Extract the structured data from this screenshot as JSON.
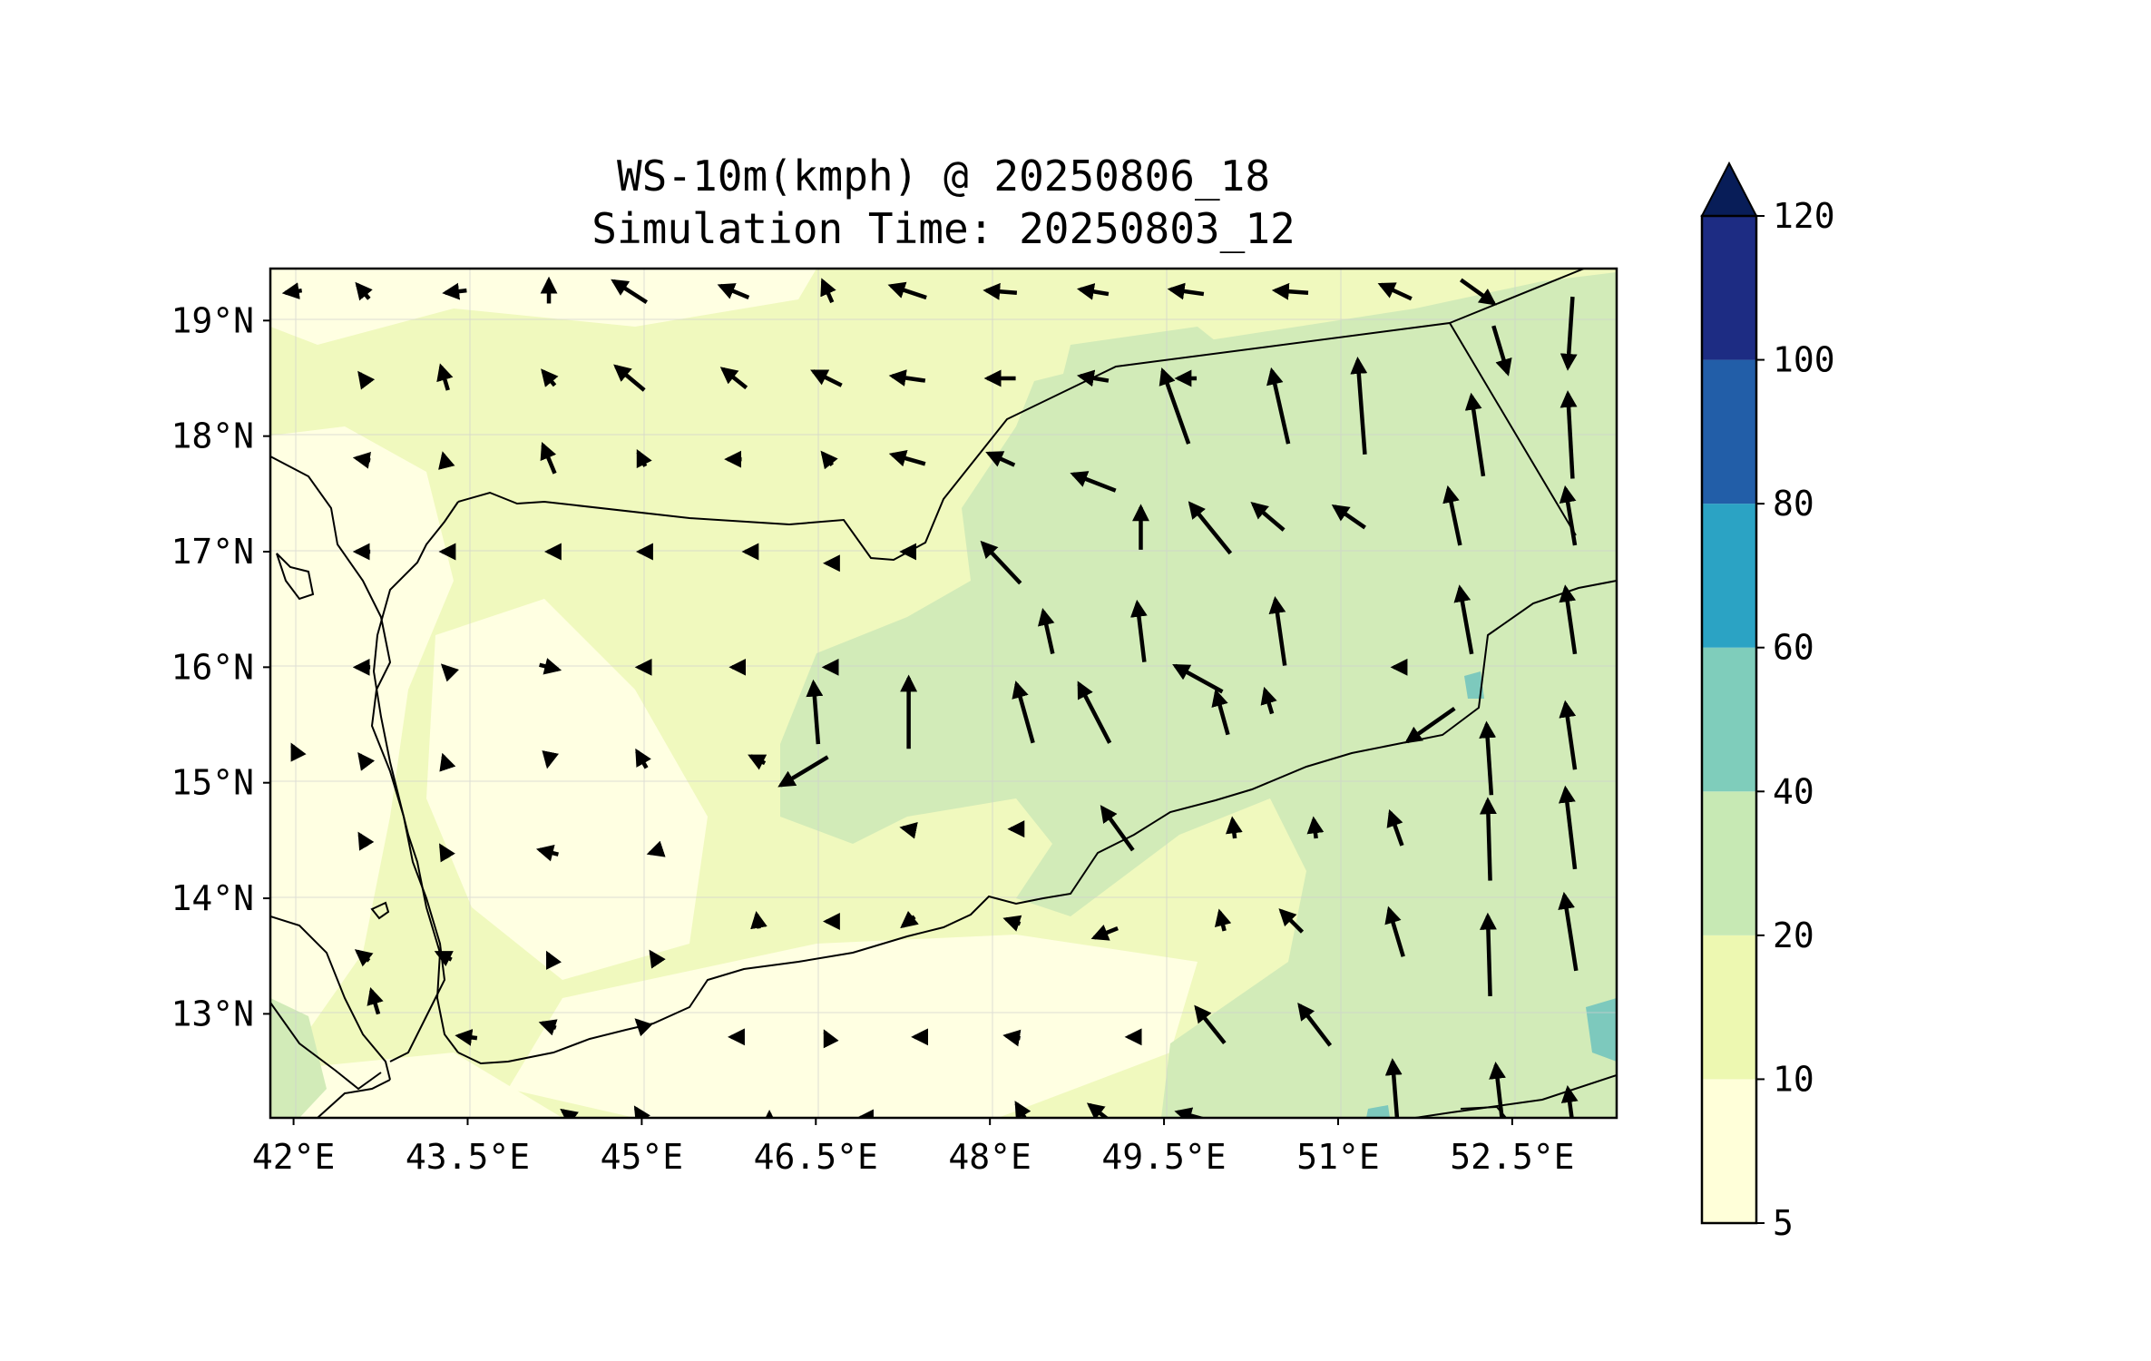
{
  "title": {
    "line1": "WS-10m(kmph) @ 20250806_18",
    "line2": "Simulation Time: 20250803_12"
  },
  "map": {
    "lon_range": [
      41.8,
      53.4
    ],
    "lat_range": [
      12.1,
      19.45
    ],
    "lon_ticks": [
      {
        "value": 42.0,
        "label": "42°E"
      },
      {
        "value": 43.5,
        "label": "43.5°E"
      },
      {
        "value": 45.0,
        "label": "45°E"
      },
      {
        "value": 46.5,
        "label": "46.5°E"
      },
      {
        "value": 48.0,
        "label": "48°E"
      },
      {
        "value": 49.5,
        "label": "49.5°E"
      },
      {
        "value": 51.0,
        "label": "51°E"
      },
      {
        "value": 52.5,
        "label": "52.5°E"
      }
    ],
    "lat_ticks": [
      {
        "value": 19,
        "label": "19°N"
      },
      {
        "value": 18,
        "label": "18°N"
      },
      {
        "value": 17,
        "label": "17°N"
      },
      {
        "value": 16,
        "label": "16°N"
      },
      {
        "value": 15,
        "label": "15°N"
      },
      {
        "value": 14,
        "label": "14°N"
      },
      {
        "value": 13,
        "label": "13°N"
      }
    ],
    "grid": true,
    "colors": {
      "land_background": "#f0f9be",
      "calm": "#ffffe2",
      "band_10_20": "#f0f9be",
      "band_20_40": "#d2ebb8",
      "band_40_60": "#7dc9bd",
      "arrow": "#000000",
      "coastline": "#000000"
    }
  },
  "colorbar": {
    "levels": [
      5,
      10,
      20,
      40,
      60,
      80,
      100,
      120
    ],
    "labels": [
      "5",
      "10",
      "20",
      "40",
      "60",
      "80",
      "100",
      "120"
    ],
    "colors": [
      "#ffffd9",
      "#edf8b1",
      "#c7e9b4",
      "#7fcdbb",
      "#2ba3c4",
      "#225ea8",
      "#1d2c83",
      "#081d58"
    ],
    "extend": "max"
  },
  "chart_data": {
    "type": "heatmap",
    "variable": "WS-10m(kmph)",
    "units": "kmph",
    "valid_time": "20250806_18",
    "simulation_time": "20250803_12",
    "vector_field": [
      [
        42.0,
        19.25,
        -7,
        -1
      ],
      [
        42.6,
        19.25,
        -5,
        6
      ],
      [
        43.4,
        19.25,
        -9,
        -1
      ],
      [
        44.2,
        19.25,
        0,
        10
      ],
      [
        44.9,
        19.25,
        -14,
        9
      ],
      [
        45.8,
        19.25,
        -12,
        5
      ],
      [
        46.6,
        19.25,
        -4,
        9
      ],
      [
        47.3,
        19.25,
        -15,
        5
      ],
      [
        48.1,
        19.25,
        -13,
        1
      ],
      [
        48.9,
        19.25,
        -12,
        2
      ],
      [
        49.7,
        19.25,
        -14,
        2
      ],
      [
        50.6,
        19.25,
        -14,
        1
      ],
      [
        51.5,
        19.25,
        -13,
        6
      ],
      [
        52.2,
        19.25,
        14,
        -10
      ],
      [
        52.4,
        18.75,
        6,
        -20
      ],
      [
        53.0,
        18.9,
        -2,
        -30
      ],
      [
        42.6,
        18.5,
        -3,
        4
      ],
      [
        43.3,
        18.5,
        -3,
        10
      ],
      [
        44.2,
        18.5,
        -5,
        6
      ],
      [
        44.9,
        18.5,
        -12,
        10
      ],
      [
        45.8,
        18.5,
        -10,
        8
      ],
      [
        46.6,
        18.5,
        -12,
        6
      ],
      [
        47.3,
        18.5,
        -14,
        2
      ],
      [
        48.1,
        18.5,
        -12,
        0
      ],
      [
        48.9,
        18.5,
        -12,
        2
      ],
      [
        49.7,
        18.5,
        -8,
        0
      ],
      [
        49.6,
        18.25,
        -11,
        31
      ],
      [
        50.5,
        18.25,
        -7,
        31
      ],
      [
        51.2,
        18.25,
        -3,
        40
      ],
      [
        52.2,
        18.0,
        -5,
        34
      ],
      [
        53.0,
        18.0,
        -2,
        36
      ],
      [
        42.6,
        17.8,
        -6,
        1
      ],
      [
        43.3,
        17.8,
        -1,
        4
      ],
      [
        44.2,
        17.8,
        -5,
        12
      ],
      [
        45.0,
        17.8,
        -3,
        6
      ],
      [
        45.8,
        17.8,
        -6,
        0
      ],
      [
        46.6,
        17.8,
        -4,
        5
      ],
      [
        47.3,
        17.8,
        -14,
        4
      ],
      [
        48.1,
        17.8,
        -11,
        5
      ],
      [
        48.9,
        17.6,
        -18,
        7
      ],
      [
        49.3,
        17.2,
        0,
        18
      ],
      [
        49.9,
        17.2,
        -17,
        21
      ],
      [
        50.4,
        17.3,
        -13,
        11
      ],
      [
        51.1,
        17.3,
        -13,
        9
      ],
      [
        52.0,
        17.3,
        -5,
        24
      ],
      [
        53.0,
        17.3,
        -4,
        24
      ],
      [
        42.6,
        17.0,
        -6,
        0
      ],
      [
        43.3,
        17.0,
        -2,
        0
      ],
      [
        44.2,
        17.0,
        -1,
        0
      ],
      [
        45.0,
        17.0,
        -2,
        0
      ],
      [
        45.9,
        17.0,
        -1,
        0
      ],
      [
        46.6,
        16.9,
        -1,
        0
      ],
      [
        47.3,
        17.0,
        -5,
        0
      ],
      [
        48.1,
        16.9,
        -16,
        17
      ],
      [
        48.5,
        16.3,
        -4,
        18
      ],
      [
        49.3,
        16.3,
        -3,
        25
      ],
      [
        50.5,
        16.3,
        -4,
        28
      ],
      [
        52.1,
        16.4,
        -5,
        28
      ],
      [
        53.0,
        16.4,
        -4,
        28
      ],
      [
        42.6,
        16.0,
        -6,
        0
      ],
      [
        43.3,
        16.0,
        -1,
        1
      ],
      [
        44.2,
        16.0,
        8,
        -2
      ],
      [
        45.0,
        16.0,
        -3,
        0
      ],
      [
        45.8,
        16.0,
        -2,
        0
      ],
      [
        46.6,
        16.0,
        -2,
        0
      ],
      [
        46.5,
        15.6,
        -2,
        26
      ],
      [
        47.3,
        15.6,
        0,
        30
      ],
      [
        48.3,
        15.6,
        -7,
        25
      ],
      [
        48.9,
        15.6,
        -13,
        25
      ],
      [
        49.8,
        15.9,
        -20,
        11
      ],
      [
        50.0,
        15.6,
        -5,
        18
      ],
      [
        50.4,
        15.7,
        -3,
        10
      ],
      [
        51.5,
        16.0,
        -2,
        0
      ],
      [
        51.8,
        15.5,
        -20,
        -14
      ],
      [
        52.3,
        15.2,
        -2,
        30
      ],
      [
        53.0,
        15.4,
        -4,
        28
      ],
      [
        42.0,
        15.3,
        -1,
        2
      ],
      [
        42.6,
        15.2,
        -3,
        4
      ],
      [
        43.3,
        15.2,
        -1,
        3
      ],
      [
        44.2,
        15.2,
        -1,
        -5
      ],
      [
        45.0,
        15.2,
        -4,
        7
      ],
      [
        46.0,
        15.2,
        -6,
        3
      ],
      [
        46.4,
        15.1,
        -20,
        -12
      ],
      [
        47.3,
        14.6,
        -5,
        1
      ],
      [
        48.2,
        14.6,
        -2,
        0
      ],
      [
        49.1,
        14.6,
        -13,
        18
      ],
      [
        50.1,
        14.6,
        -1,
        8
      ],
      [
        50.8,
        14.6,
        -1,
        8
      ],
      [
        51.5,
        14.6,
        -5,
        14
      ],
      [
        52.3,
        14.5,
        -1,
        34
      ],
      [
        53.0,
        14.6,
        -4,
        34
      ],
      [
        42.6,
        14.5,
        -3,
        5
      ],
      [
        43.3,
        14.4,
        -3,
        5
      ],
      [
        44.2,
        14.4,
        -8,
        2
      ],
      [
        45.1,
        14.4,
        -3,
        -1
      ],
      [
        46.0,
        13.8,
        -1,
        6
      ],
      [
        46.6,
        13.8,
        -1,
        0
      ],
      [
        47.3,
        13.8,
        -5,
        -4
      ],
      [
        48.2,
        13.8,
        -6,
        2
      ],
      [
        49.0,
        13.7,
        -10,
        -4
      ],
      [
        50.0,
        13.8,
        -2,
        8
      ],
      [
        50.6,
        13.8,
        -9,
        9
      ],
      [
        51.5,
        13.7,
        -6,
        20
      ],
      [
        52.3,
        13.5,
        -1,
        34
      ],
      [
        53.0,
        13.7,
        -5,
        32
      ],
      [
        42.6,
        13.5,
        -5,
        4
      ],
      [
        43.3,
        13.5,
        -6,
        3
      ],
      [
        44.2,
        13.5,
        -1,
        2
      ],
      [
        45.1,
        13.5,
        -2,
        3
      ],
      [
        42.7,
        13.1,
        -3,
        10
      ],
      [
        43.5,
        12.8,
        -8,
        1
      ],
      [
        44.2,
        12.9,
        -6,
        2
      ],
      [
        45.0,
        12.9,
        -4,
        4
      ],
      [
        45.8,
        12.8,
        -3,
        0
      ],
      [
        46.6,
        12.8,
        -2,
        4
      ],
      [
        47.4,
        12.8,
        -5,
        0
      ],
      [
        48.2,
        12.8,
        -6,
        1
      ],
      [
        49.2,
        12.8,
        -1,
        0
      ],
      [
        49.9,
        12.9,
        -12,
        15
      ],
      [
        50.8,
        12.9,
        -13,
        17
      ],
      [
        51.5,
        12.2,
        -3,
        38
      ],
      [
        52.4,
        12.2,
        -4,
        35
      ],
      [
        53.0,
        12.2,
        -2,
        15
      ],
      [
        44.4,
        12.1,
        -8,
        6
      ],
      [
        45.0,
        12.1,
        -5,
        8
      ],
      [
        46.1,
        12.1,
        0,
        4
      ],
      [
        46.9,
        12.1,
        -2,
        0
      ],
      [
        48.3,
        12.1,
        -7,
        12
      ],
      [
        49.0,
        12.1,
        -14,
        11
      ],
      [
        49.8,
        12.1,
        -18,
        5
      ]
    ]
  }
}
